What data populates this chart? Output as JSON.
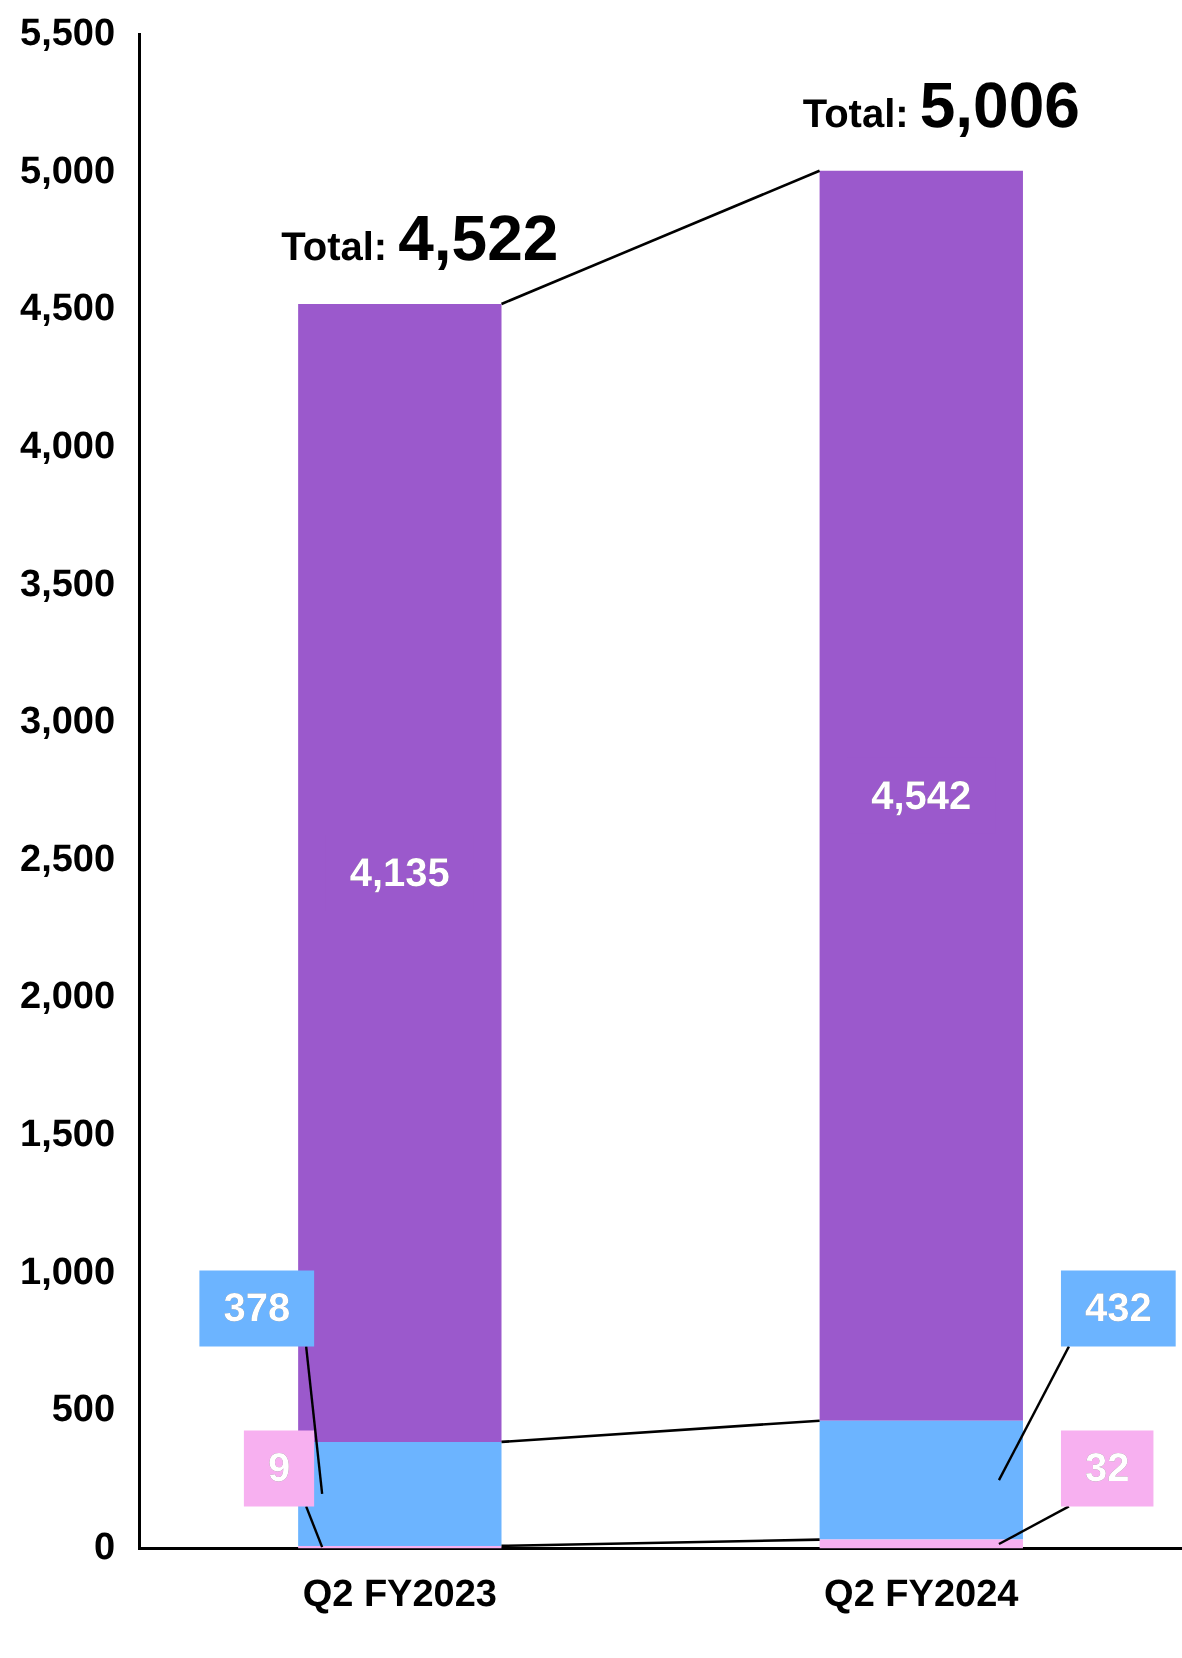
{
  "chart_data": {
    "type": "bar",
    "stacked": true,
    "categories": [
      "Q2 FY2023",
      "Q2 FY2024"
    ],
    "series": [
      {
        "color": "#f7b0f0",
        "values": [
          9,
          32
        ],
        "value_labels": [
          "9",
          "32"
        ]
      },
      {
        "color": "#6cb4ff",
        "values": [
          378,
          432
        ],
        "value_labels": [
          "378",
          "432"
        ]
      },
      {
        "color": "#9b59cc",
        "values": [
          4135,
          4542
        ],
        "value_labels": [
          "4,135",
          "4,542"
        ]
      }
    ],
    "ylim": [
      0,
      5500
    ],
    "yticks": [
      0,
      {
        "value": 500,
        "label": "500"
      },
      {
        "value": 1000,
        "label": "1,000"
      },
      {
        "value": 1500,
        "label": "1,500"
      },
      {
        "value": 2000,
        "label": "2,000"
      },
      {
        "value": 2500,
        "label": "2,500"
      },
      {
        "value": 3000,
        "label": "3,000"
      },
      {
        "value": 3500,
        "label": "3,500"
      },
      {
        "value": 4000,
        "label": "4,000"
      },
      {
        "value": 4500,
        "label": "4,500"
      },
      {
        "value": 5000,
        "label": "5,000"
      },
      {
        "value": 5500,
        "label": "5,500"
      }
    ],
    "grid": false,
    "legend": false,
    "totals": [
      "Total: 4,522",
      "Total: 5,006"
    ]
  }
}
